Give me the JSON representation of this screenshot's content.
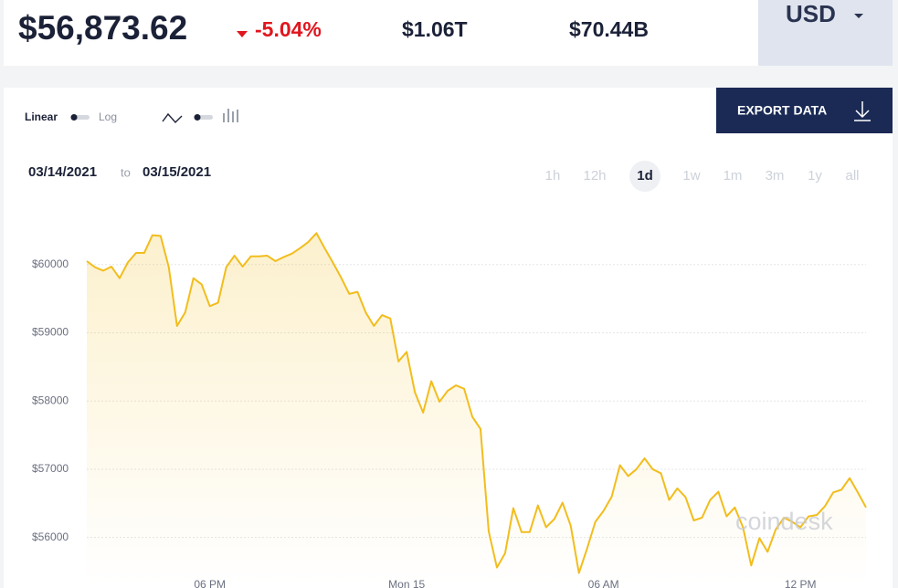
{
  "header": {
    "price": "$56,873.62",
    "change": "-5.04%",
    "market_cap": "$1.06T",
    "volume": "$70.44B",
    "currency": "USD"
  },
  "controls": {
    "scale_linear": "Linear",
    "scale_log": "Log",
    "export_button": "EXPORT DATA",
    "date_from": "03/14/2021",
    "date_separator": "to",
    "date_to": "03/15/2021",
    "timeframes": [
      "1h",
      "12h",
      "1d",
      "1w",
      "1m",
      "3m",
      "1y",
      "all"
    ],
    "selected_timeframe": "1d"
  },
  "watermark": "coindesk",
  "chart_data": {
    "type": "line",
    "color": "#f2bd1d",
    "grid": true,
    "log_scale": false,
    "ylim": [
      55300,
      61000
    ],
    "yticks": [
      {
        "value": 56000,
        "label": "$56000"
      },
      {
        "value": 57000,
        "label": "$57000"
      },
      {
        "value": 58000,
        "label": "$58000"
      },
      {
        "value": 59000,
        "label": "$59000"
      },
      {
        "value": 60000,
        "label": "$60000"
      }
    ],
    "categories": [
      null,
      null,
      null,
      null,
      null,
      null,
      null,
      null,
      null,
      null,
      null,
      null,
      null,
      null,
      null,
      "06 PM",
      null,
      null,
      null,
      null,
      null,
      null,
      null,
      null,
      null,
      null,
      null,
      null,
      null,
      null,
      null,
      null,
      null,
      null,
      null,
      null,
      null,
      null,
      null,
      "Mon 15",
      null,
      null,
      null,
      null,
      null,
      null,
      null,
      null,
      null,
      null,
      null,
      null,
      null,
      null,
      null,
      null,
      null,
      null,
      null,
      null,
      null,
      null,
      null,
      "06 AM",
      null,
      null,
      null,
      null,
      null,
      null,
      null,
      null,
      null,
      null,
      null,
      null,
      null,
      null,
      null,
      null,
      null,
      null,
      null,
      null,
      null,
      null,
      null,
      "12 PM",
      null,
      null,
      null,
      null,
      null,
      null,
      null,
      null
    ],
    "values": [
      60050,
      59960,
      59910,
      59970,
      59800,
      60030,
      60170,
      60170,
      60430,
      60420,
      59960,
      59100,
      59300,
      59800,
      59710,
      59390,
      59440,
      59960,
      60130,
      59970,
      60120,
      60120,
      60130,
      60050,
      60110,
      60160,
      60240,
      60330,
      60460,
      60240,
      60030,
      59810,
      59570,
      59600,
      59300,
      59100,
      59260,
      59210,
      58580,
      58720,
      58130,
      57830,
      58290,
      57990,
      58150,
      58230,
      58180,
      57770,
      57590,
      56090,
      55560,
      55770,
      56430,
      56080,
      56080,
      56470,
      56150,
      56270,
      56510,
      56170,
      55480,
      55840,
      56230,
      56390,
      56600,
      57060,
      56900,
      57000,
      57160,
      57000,
      56940,
      56550,
      56720,
      56590,
      56250,
      56290,
      56550,
      56670,
      56310,
      56440,
      56150,
      55590,
      55990,
      55790,
      56120,
      56290,
      56230,
      56150,
      56310,
      56330,
      56460,
      56660,
      56700,
      56870,
      56660,
      56440
    ]
  }
}
